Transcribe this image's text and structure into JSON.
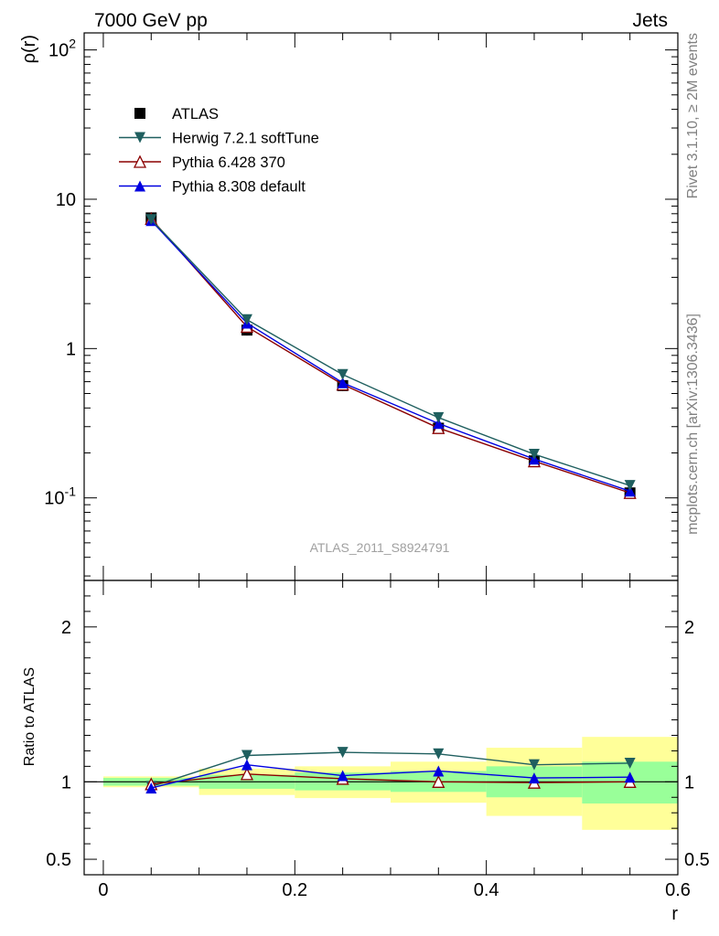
{
  "header": {
    "left": "7000 GeV pp",
    "right": "Jets"
  },
  "side_labels": {
    "top": "Rivet 3.1.10, ≥ 2M events",
    "bottom": "mcplots.cern.ch [arXiv:1306.3436]"
  },
  "analysis_label": "ATLAS_2011_S8924791",
  "chart_data": [
    {
      "type": "line",
      "panel": "main",
      "xlabel": "",
      "ylabel": "ρ(r)",
      "yscale": "log",
      "xlim": [
        -0.02,
        0.6
      ],
      "ylim": [
        0.028,
        130
      ],
      "ytick_labels": [
        "10^-1",
        "1",
        "10",
        "10^2"
      ],
      "x": [
        0.05,
        0.15,
        0.25,
        0.35,
        0.45,
        0.55
      ],
      "legend": "top-left",
      "series": [
        {
          "name": "ATLAS",
          "marker": "square",
          "color": "#000000",
          "values": [
            7.5,
            1.33,
            0.565,
            0.293,
            0.177,
            0.108
          ]
        },
        {
          "name": "Herwig 7.2.1 softTune",
          "marker": "triangle-down",
          "color": "#1f5f5f",
          "values": [
            7.3,
            1.56,
            0.67,
            0.345,
            0.196,
            0.121
          ]
        },
        {
          "name": "Pythia 6.428 370",
          "marker": "triangle-up-open",
          "color": "#8b0000",
          "values": [
            7.4,
            1.4,
            0.575,
            0.294,
            0.176,
            0.108
          ]
        },
        {
          "name": "Pythia 8.308 default",
          "marker": "triangle-up",
          "color": "#0000e0",
          "values": [
            7.2,
            1.48,
            0.59,
            0.315,
            0.182,
            0.111
          ]
        }
      ]
    },
    {
      "type": "line",
      "panel": "ratio",
      "xlabel": "r",
      "ylabel": "Ratio to ATLAS",
      "xlim": [
        -0.02,
        0.6
      ],
      "ylim": [
        0.4,
        2.3
      ],
      "xtick_labels": [
        "0",
        "0.2",
        "0.4",
        "0.6"
      ],
      "ytick_labels": [
        "0.5",
        "1",
        "2"
      ],
      "x": [
        0.05,
        0.15,
        0.25,
        0.35,
        0.45,
        0.55
      ],
      "bands": {
        "bin_edges": [
          0.0,
          0.1,
          0.2,
          0.3,
          0.4,
          0.5,
          0.6
        ],
        "green_colors": "#99ff99",
        "yellow_colors": "#ffff99",
        "green": [
          [
            0.975,
            1.025
          ],
          [
            0.955,
            1.045
          ],
          [
            0.945,
            1.06
          ],
          [
            0.935,
            1.07
          ],
          [
            0.9,
            1.1
          ],
          [
            0.86,
            1.13
          ]
        ],
        "yellow": [
          [
            0.965,
            1.035
          ],
          [
            0.915,
            1.085
          ],
          [
            0.895,
            1.1
          ],
          [
            0.865,
            1.13
          ],
          [
            0.78,
            1.22
          ],
          [
            0.69,
            1.29
          ]
        ]
      },
      "series": [
        {
          "name": "Herwig 7.2.1 softTune",
          "color": "#1f5f5f",
          "values": [
            0.97,
            1.17,
            1.19,
            1.18,
            1.11,
            1.12
          ]
        },
        {
          "name": "Pythia 6.428 370",
          "color": "#8b0000",
          "values": [
            0.985,
            1.05,
            1.02,
            1.0,
            0.995,
            1.0
          ]
        },
        {
          "name": "Pythia 8.308 default",
          "color": "#0000e0",
          "values": [
            0.96,
            1.11,
            1.04,
            1.07,
            1.025,
            1.03
          ]
        }
      ]
    }
  ]
}
